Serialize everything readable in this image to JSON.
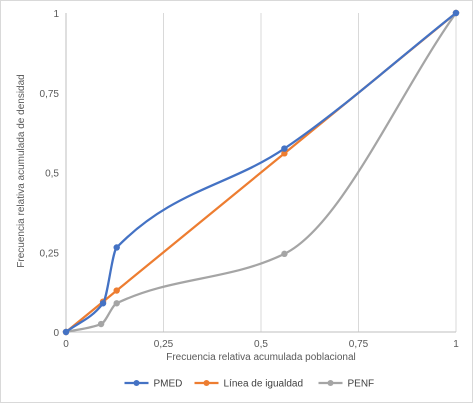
{
  "chart_data": {
    "type": "line",
    "xlabel": "Frecuencia relativa acumulada poblacional",
    "ylabel": "Frecuencia relativa acumulada de densidad",
    "xlim": [
      0,
      1
    ],
    "ylim": [
      0,
      1
    ],
    "xticks": [
      0,
      0.25,
      0.5,
      0.75,
      1
    ],
    "yticks": [
      0,
      0.25,
      0.5,
      0.75,
      1
    ],
    "xtick_labels": [
      "0",
      "0,25",
      "0,5",
      "0,75",
      "1"
    ],
    "ytick_labels": [
      "0",
      "0,25",
      "0,5",
      "0,75",
      "1"
    ],
    "grid": "vertical",
    "legend_position": "bottom",
    "series": [
      {
        "name": "PMED",
        "color": "#4472c4",
        "smooth": true,
        "x": [
          0,
          0.095,
          0.13,
          0.56,
          1
        ],
        "y": [
          0,
          0.09,
          0.265,
          0.575,
          1
        ]
      },
      {
        "name": "Línea de igualdad",
        "color": "#ed7d31",
        "smooth": false,
        "x": [
          0,
          0.095,
          0.13,
          0.56,
          1
        ],
        "y": [
          0,
          0.095,
          0.13,
          0.56,
          1
        ]
      },
      {
        "name": "PENF",
        "color": "#a5a5a5",
        "smooth": true,
        "x": [
          0,
          0.09,
          0.13,
          0.56,
          1
        ],
        "y": [
          0,
          0.025,
          0.09,
          0.245,
          1
        ]
      }
    ]
  }
}
